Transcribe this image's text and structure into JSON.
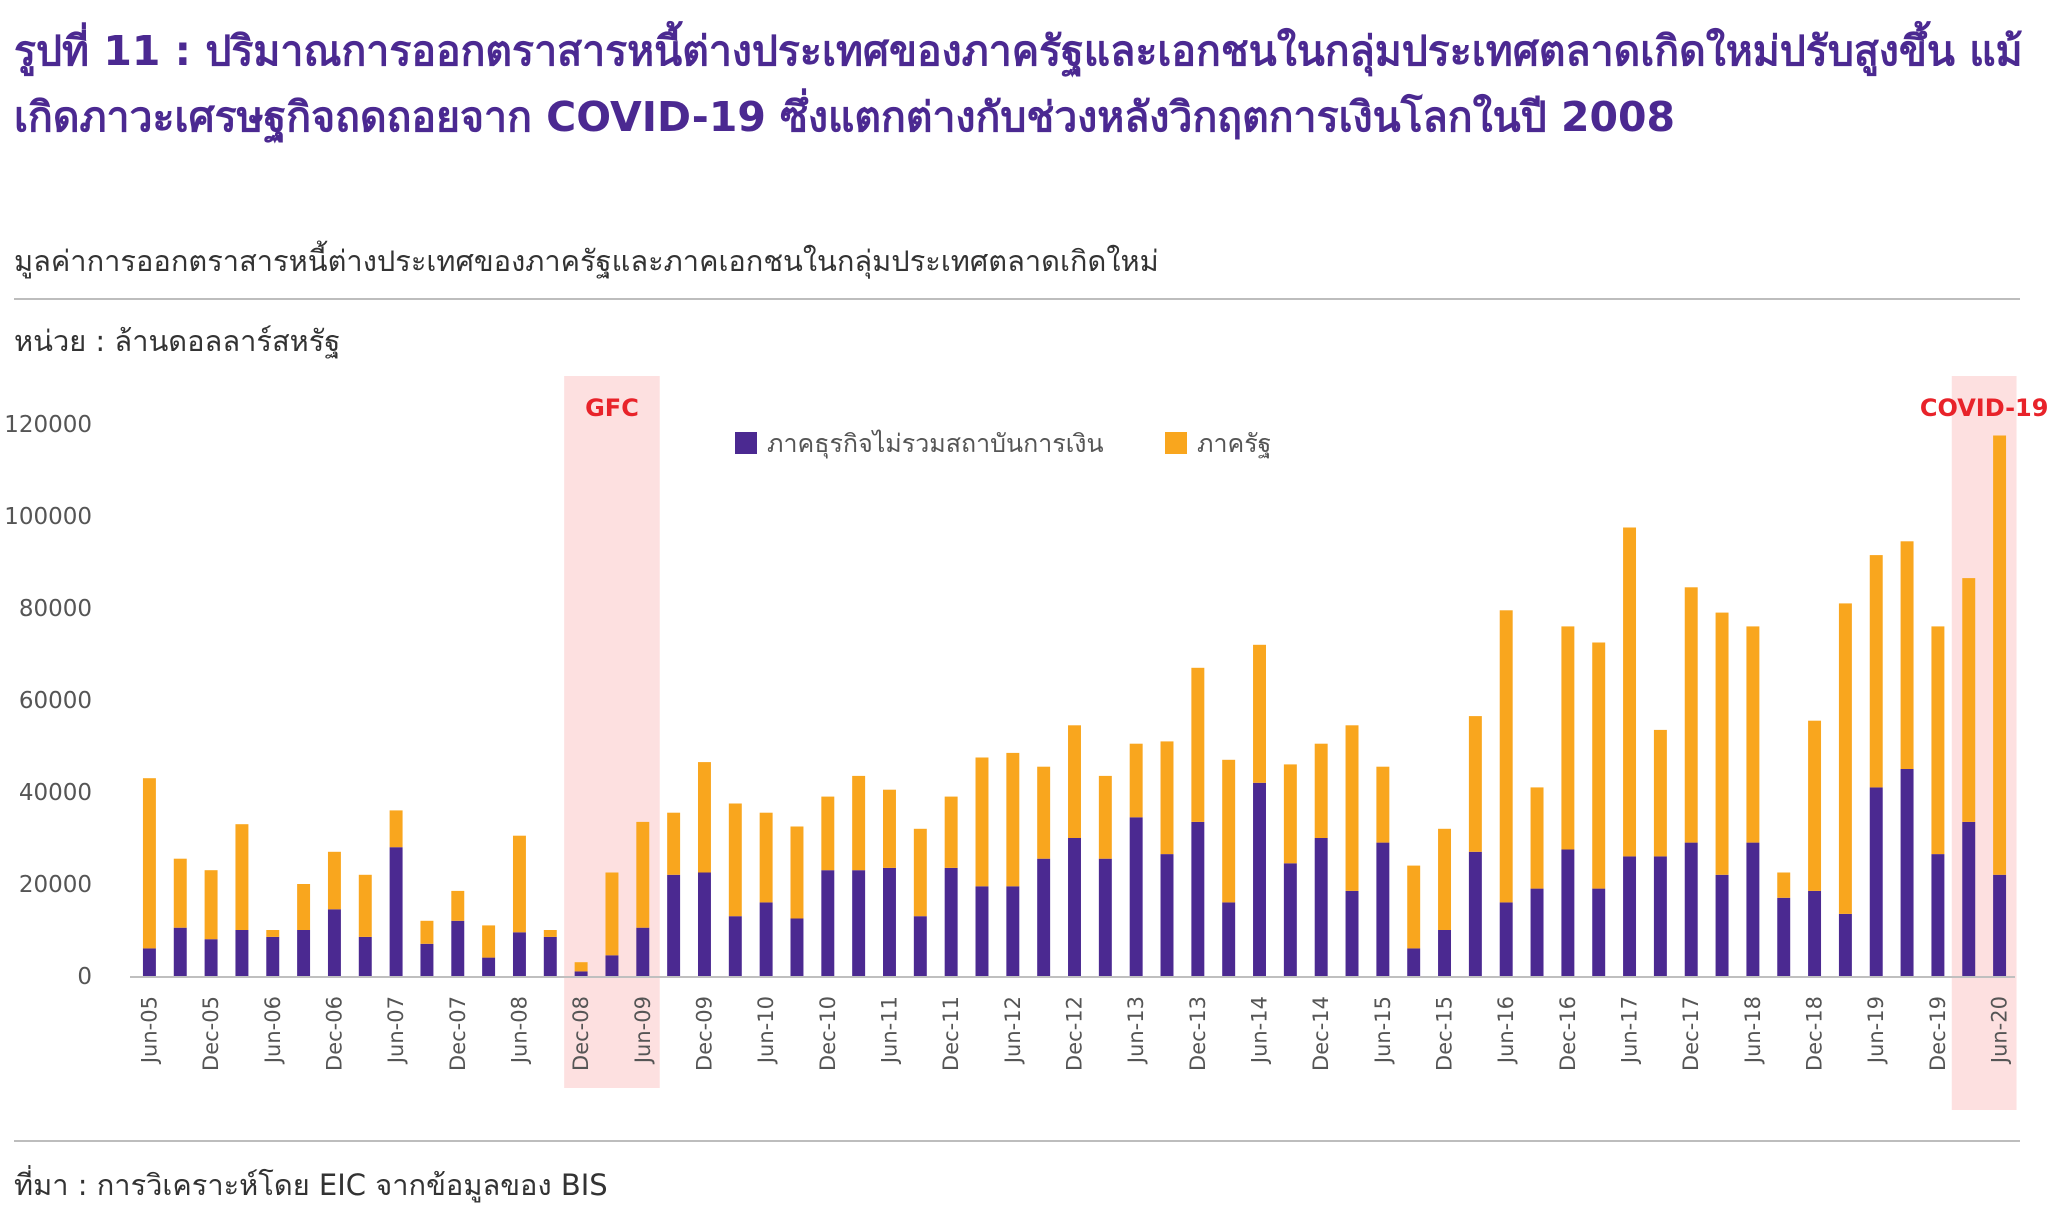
{
  "title": "รูปที่ 11 : ปริมาณการออกตราสารหนี้ต่างประเทศของภาครัฐและเอกชนในกลุ่มประเทศตลาดเกิดใหม่ปรับสูงขึ้น แม้เกิดภาวะเศรษฐกิจถดถอยจาก COVID-19 ซึ่งแตกต่างกับช่วงหลังวิกฤตการเงินโลกในปี 2008",
  "subtitle": "มูลค่าการออกตราสารหนี้ต่างประเทศของภาครัฐและภาคเอกชนในกลุ่มประเทศตลาดเกิดใหม่",
  "unit": "หน่วย : ล้านดอลลาร์สหรัฐ",
  "source": "ที่มา : การวิเคราะห์โดย EIC จากข้อมูลของ BIS",
  "colors": {
    "title": "#4b2991",
    "corporate": "#4b2991",
    "government": "#f9a61e",
    "shade": "#fde0e0",
    "period_label": "#e8232a"
  },
  "chart_data": {
    "type": "bar",
    "stacked": true,
    "x": [
      "Jun-05",
      "Sep-05",
      "Dec-05",
      "Mar-06",
      "Jun-06",
      "Sep-06",
      "Dec-06",
      "Mar-07",
      "Jun-07",
      "Sep-07",
      "Dec-07",
      "Mar-08",
      "Jun-08",
      "Sep-08",
      "Dec-08",
      "Mar-09",
      "Jun-09",
      "Sep-09",
      "Dec-09",
      "Mar-10",
      "Jun-10",
      "Sep-10",
      "Dec-10",
      "Mar-11",
      "Jun-11",
      "Sep-11",
      "Dec-11",
      "Mar-12",
      "Jun-12",
      "Sep-12",
      "Dec-12",
      "Mar-13",
      "Jun-13",
      "Sep-13",
      "Dec-13",
      "Mar-14",
      "Jun-14",
      "Sep-14",
      "Dec-14",
      "Mar-15",
      "Jun-15",
      "Sep-15",
      "Dec-15",
      "Mar-16",
      "Jun-16",
      "Sep-16",
      "Dec-16",
      "Mar-17",
      "Jun-17",
      "Sep-17",
      "Dec-17",
      "Mar-18",
      "Jun-18",
      "Sep-18",
      "Dec-18",
      "Mar-19",
      "Jun-19",
      "Sep-19",
      "Dec-19",
      "Mar-20",
      "Jun-20"
    ],
    "tick_labels": [
      "Jun-05",
      "Dec-05",
      "Jun-06",
      "Dec-06",
      "Jun-07",
      "Dec-07",
      "Jun-08",
      "Dec-08",
      "Jun-09",
      "Dec-09",
      "Jun-10",
      "Dec-10",
      "Jun-11",
      "Dec-11",
      "Jun-12",
      "Dec-12",
      "Jun-13",
      "Dec-13",
      "Jun-14",
      "Dec-14",
      "Jun-15",
      "Dec-15",
      "Jun-16",
      "Dec-16",
      "Jun-17",
      "Dec-17",
      "Jun-18",
      "Dec-18",
      "Jun-19",
      "Dec-19",
      "Jun-20"
    ],
    "series": [
      {
        "name": "ภาคธุรกิจไม่รวมสถาบันการเงิน",
        "values": [
          6000,
          10500,
          8000,
          10000,
          8500,
          10000,
          14500,
          8500,
          28000,
          7000,
          12000,
          4000,
          9500,
          8500,
          1000,
          4500,
          10500,
          22000,
          22500,
          13000,
          16000,
          12500,
          23000,
          23000,
          23500,
          13000,
          23500,
          19500,
          19500,
          25500,
          30000,
          25500,
          34500,
          26500,
          33500,
          16000,
          42000,
          24500,
          30000,
          18500,
          29000,
          6000,
          10000,
          27000,
          16000,
          19000,
          27500,
          19000,
          26000,
          26000,
          29000,
          22000,
          29000,
          17000,
          18500,
          13500,
          41000,
          45000,
          26500,
          33500,
          22000
        ]
      },
      {
        "name": "ภาครัฐ",
        "values": [
          37000,
          15000,
          15000,
          23000,
          1500,
          10000,
          12500,
          13500,
          8000,
          5000,
          6500,
          7000,
          21000,
          1500,
          2000,
          18000,
          23000,
          13500,
          24000,
          24500,
          19500,
          20000,
          16000,
          20500,
          17000,
          19000,
          15500,
          28000,
          29000,
          20000,
          24500,
          18000,
          16000,
          24500,
          33500,
          31000,
          30000,
          21500,
          20500,
          36000,
          16500,
          18000,
          22000,
          29500,
          63500,
          22000,
          48500,
          53500,
          71500,
          27500,
          55500,
          57000,
          47000,
          5500,
          37000,
          67500,
          50500,
          49500,
          49500,
          53000,
          95500
        ]
      }
    ],
    "ylim": [
      0,
      120000
    ],
    "yticks": [
      0,
      20000,
      40000,
      60000,
      80000,
      100000,
      120000
    ],
    "legend_position": "top-center",
    "shaded_periods": [
      {
        "label": "GFC",
        "from": "Dec-08",
        "to": "Jun-09"
      },
      {
        "label": "COVID-19",
        "from": "Mar-20",
        "to": "Jun-20"
      }
    ],
    "grid": false
  }
}
